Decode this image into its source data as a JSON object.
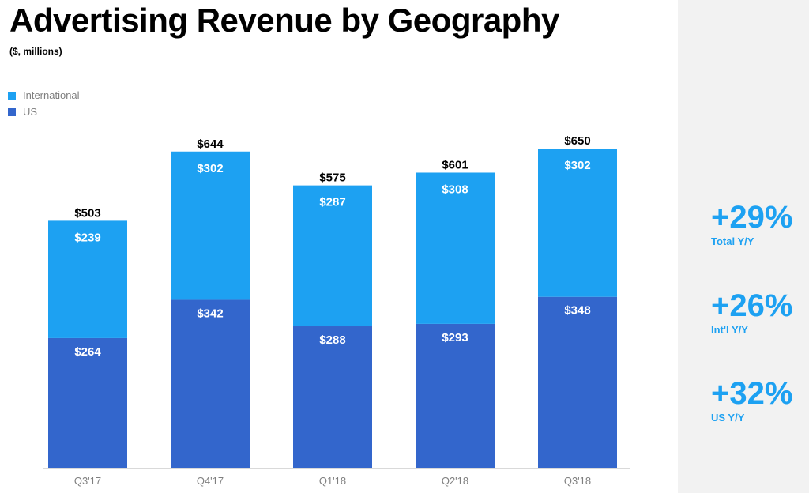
{
  "header": {
    "title": "Advertising Revenue by Geography",
    "subtitle": "($, millions)"
  },
  "legend": [
    {
      "label": "International",
      "color": "#1da1f2"
    },
    {
      "label": "US",
      "color": "#3366cc"
    }
  ],
  "chart_data": {
    "type": "bar",
    "stacked": true,
    "title": "Advertising Revenue by Geography",
    "subtitle": "($, millions)",
    "xlabel": "",
    "ylabel": "",
    "categories": [
      "Q3'17",
      "Q4'17",
      "Q1'18",
      "Q2'18",
      "Q3'18"
    ],
    "series": [
      {
        "name": "US",
        "color": "#3366cc",
        "values": [
          264,
          342,
          288,
          293,
          348
        ],
        "labels": [
          "$264",
          "$342",
          "$288",
          "$293",
          "$348"
        ]
      },
      {
        "name": "International",
        "color": "#1da1f2",
        "values": [
          239,
          302,
          287,
          308,
          302
        ],
        "labels": [
          "$239",
          "$302",
          "$287",
          "$308",
          "$302"
        ]
      }
    ],
    "totals": [
      503,
      644,
      575,
      601,
      650
    ],
    "total_labels": [
      "$503",
      "$644",
      "$575",
      "$601",
      "$650"
    ],
    "ylim": [
      0,
      700
    ],
    "grid": false,
    "legend_position": "top-left"
  },
  "side_stats": [
    {
      "value": "+29%",
      "label": "Total Y/Y"
    },
    {
      "value": "+26%",
      "label": "Int'l Y/Y"
    },
    {
      "value": "+32%",
      "label": "US Y/Y"
    }
  ]
}
